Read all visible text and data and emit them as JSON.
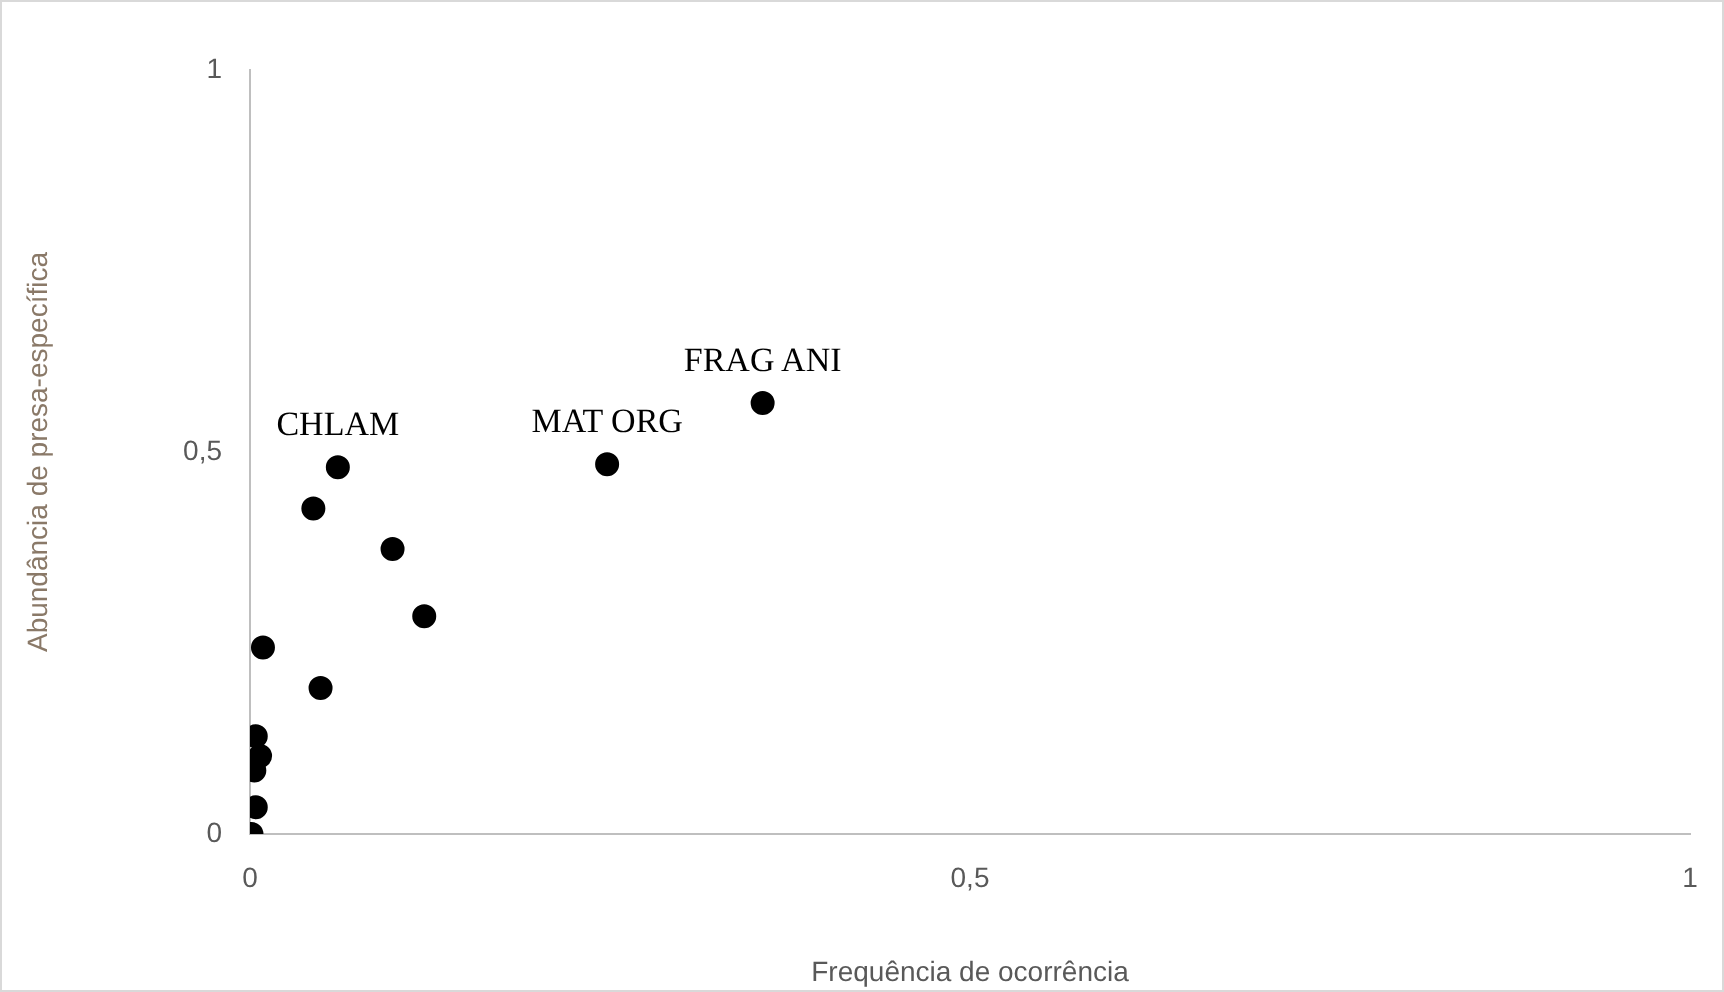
{
  "chart_data": {
    "type": "scatter",
    "xlabel": "Frequência de ocorrência",
    "ylabel": "Abundância de presa-específica",
    "x": [
      0.356,
      0.248,
      0.061,
      0.044,
      0.099,
      0.121,
      0.009,
      0.049,
      0.004,
      0.007,
      0.003,
      0.004,
      0.001
    ],
    "values": [
      0.564,
      0.484,
      0.48,
      0.426,
      0.373,
      0.285,
      0.244,
      0.191,
      0.128,
      0.102,
      0.083,
      0.035,
      0.0
    ],
    "color": "#000000",
    "marker": "circle",
    "xlim": [
      0,
      1
    ],
    "ylim": [
      0,
      1
    ],
    "xticks": [
      0,
      {
        "value": 0.5,
        "label": "0,5"
      },
      1
    ],
    "yticks": [
      0,
      {
        "value": 0.5,
        "label": "0,5"
      },
      1
    ],
    "grid": false,
    "legend": false,
    "annotations": [
      {
        "text": "FRAG ANI",
        "x": 0.356,
        "y": 0.564
      },
      {
        "text": "MAT ORG",
        "x": 0.248,
        "y": 0.484
      },
      {
        "text": "CHLAM",
        "x": 0.061,
        "y": 0.48
      }
    ]
  }
}
